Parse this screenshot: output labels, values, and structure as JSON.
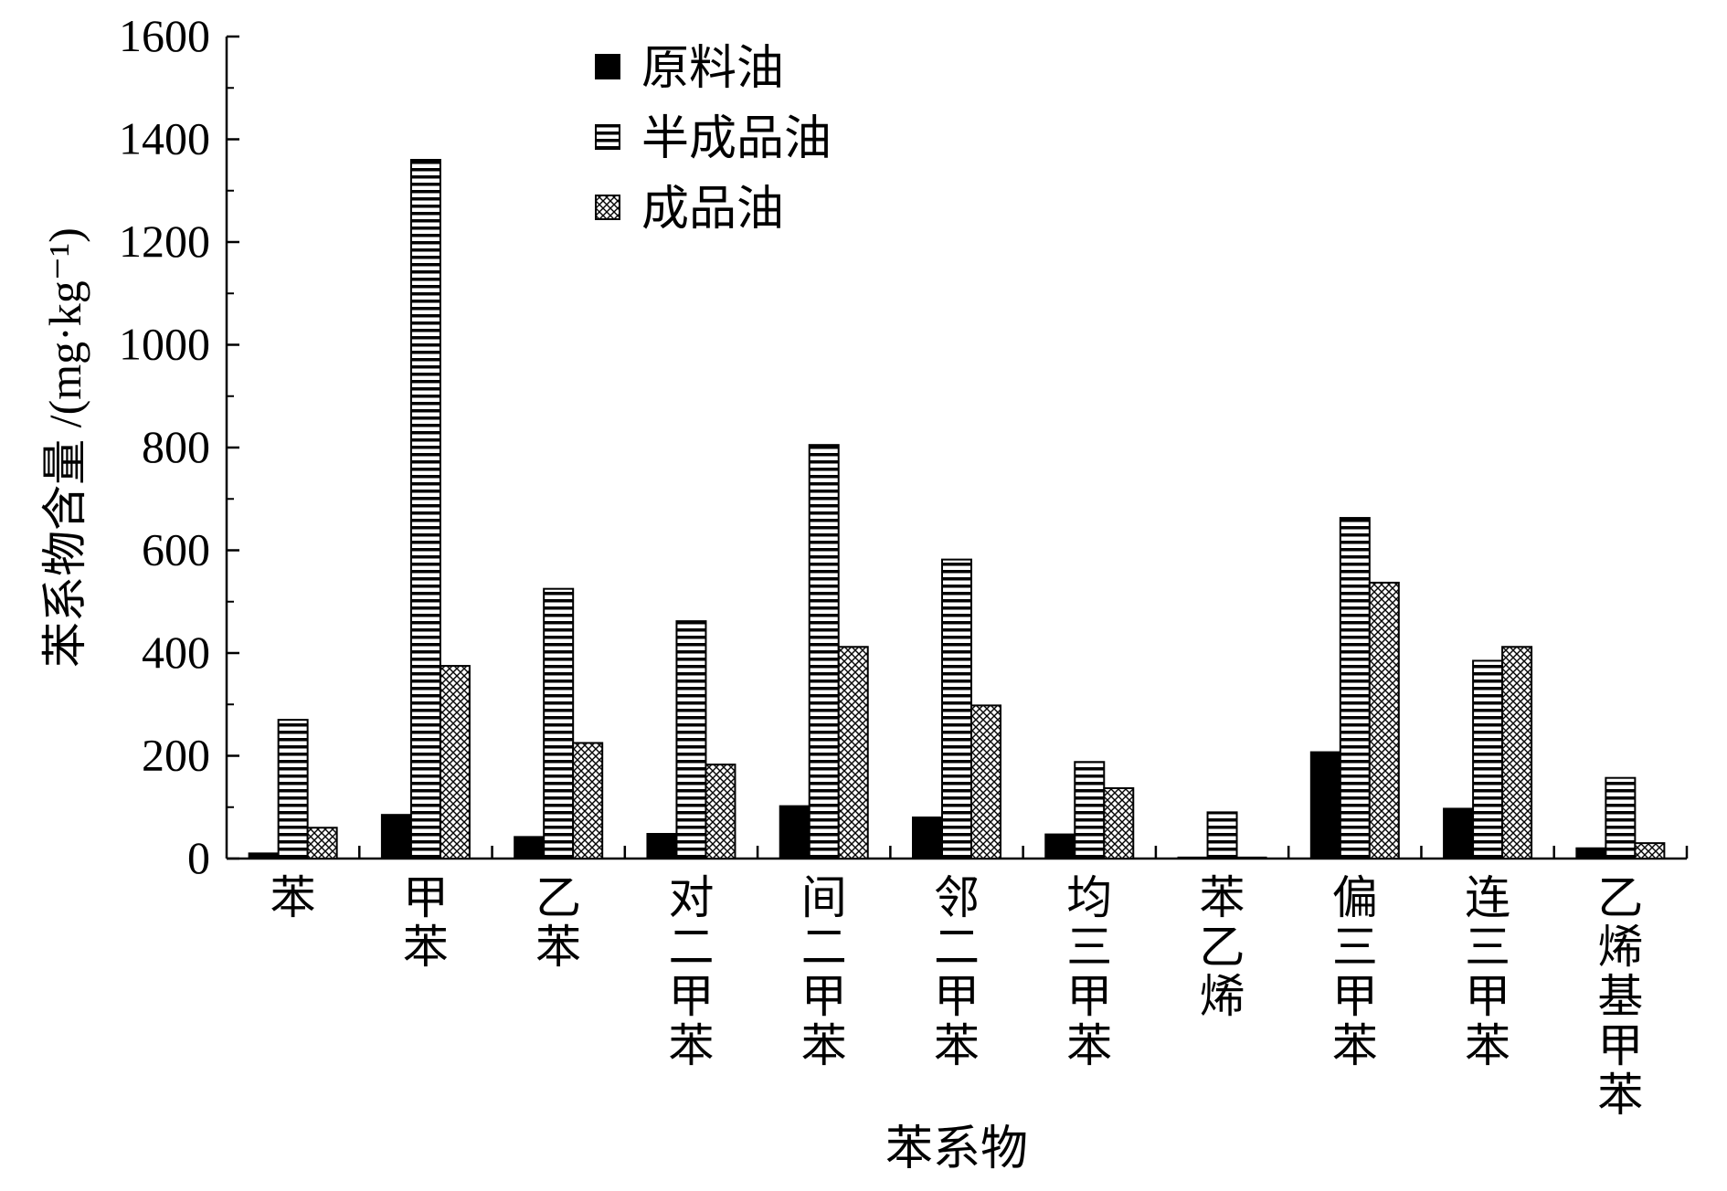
{
  "chart_data": {
    "type": "bar",
    "xlabel": "苯系物",
    "ylabel": "苯系物含量 /(mg·kg⁻¹)",
    "ylim": [
      0,
      1600
    ],
    "yticks": [
      "0",
      "200",
      "400",
      "600",
      "800",
      "1000",
      "1200",
      "1400",
      "1600"
    ],
    "grid": false,
    "legend_position": "top-center",
    "categories": [
      "苯",
      "甲苯",
      "乙苯",
      "对二甲苯",
      "间二甲苯",
      "邻二甲苯",
      "均三甲苯",
      "苯乙烯",
      "偏三甲苯",
      "连三甲苯",
      "乙烯基甲苯"
    ],
    "series": [
      {
        "name": "原料油",
        "pattern": "solid",
        "values": [
          10,
          85,
          42,
          48,
          102,
          80,
          47,
          2,
          207,
          97,
          20
        ]
      },
      {
        "name": "半成品油",
        "pattern": "horizontal-stripes",
        "values": [
          270,
          1360,
          525,
          462,
          805,
          582,
          188,
          90,
          663,
          385,
          157
        ]
      },
      {
        "name": "成品油",
        "pattern": "crosshatch",
        "values": [
          60,
          375,
          225,
          183,
          412,
          298,
          137,
          2,
          537,
          412,
          30
        ]
      }
    ]
  }
}
